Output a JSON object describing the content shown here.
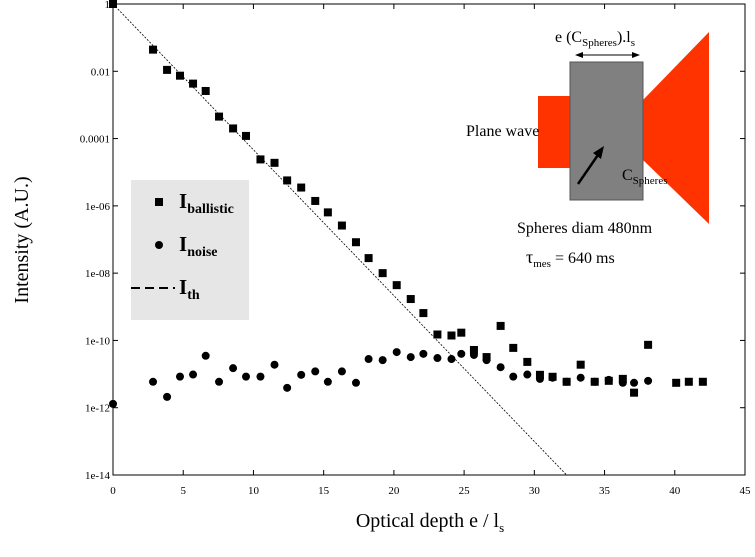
{
  "chart_data": {
    "type": "scatter",
    "log_y": true,
    "y_label": "Intensity (A.U.)",
    "x_label": "Optical depth e / l",
    "x_label_subscript": "s",
    "xlim": [
      0,
      45
    ],
    "xticks": [
      0,
      5,
      10,
      15,
      20,
      25,
      30,
      35,
      40,
      45
    ],
    "ylim": [
      1e-14,
      1
    ],
    "yticks": [
      1,
      {
        "value": 0.01,
        "label": "0.01"
      },
      {
        "value": 0.0001,
        "label": "0.0001"
      },
      {
        "value": 1e-06,
        "label": "1e-06"
      },
      {
        "value": 1e-08,
        "label": "1e-08"
      },
      {
        "value": 1e-10,
        "label": "1e-10"
      },
      {
        "value": 1e-12,
        "label": "1e-12"
      },
      {
        "value": 1e-14,
        "label": "1e-14"
      }
    ],
    "series": [
      {
        "name": "I",
        "name_subscript": "ballistic",
        "marker": "square",
        "color": "#000000",
        "x": [
          0,
          2.85,
          3.85,
          4.77,
          5.7,
          6.6,
          7.55,
          8.55,
          9.47,
          10.5,
          11.5,
          12.4,
          13.4,
          14.4,
          15.3,
          16.3,
          17.3,
          18.2,
          19.2,
          20.2,
          21.2,
          22.1,
          23.1,
          24.1,
          24.8,
          25.7,
          26.6,
          27.6,
          28.5,
          29.5,
          30.4,
          31.3,
          32.3,
          33.3,
          34.3,
          35.3,
          36.3,
          37.1,
          38.1,
          40.1,
          41.0,
          42.0
        ],
        "values": [
          1,
          0.044,
          0.011,
          0.0074,
          0.0043,
          0.0026,
          0.00045,
          0.0002,
          0.00012,
          2.4e-05,
          1.9e-05,
          5.7e-06,
          3.5e-06,
          1.4e-06,
          6.4e-07,
          2.6e-07,
          8.3e-08,
          2.8e-08,
          1e-08,
          4.4e-09,
          1.7e-09,
          6.5e-10,
          1.5e-10,
          1.4e-10,
          1.7e-10,
          5.2e-11,
          3.2e-11,
          2.7e-10,
          6e-11,
          2.3e-11,
          9.5e-12,
          8.3e-12,
          5.9e-12,
          1.9e-11,
          5.9e-12,
          6.3e-12,
          7.2e-12,
          2.8e-12,
          7.4e-11,
          5.5e-12,
          5.9e-12,
          5.9e-12
        ]
      },
      {
        "name": "I",
        "name_subscript": "noise",
        "marker": "circle",
        "color": "#000000",
        "x": [
          0,
          2.85,
          3.85,
          4.77,
          5.7,
          6.6,
          7.55,
          8.55,
          9.47,
          10.5,
          11.5,
          12.4,
          13.4,
          14.4,
          15.3,
          16.3,
          17.3,
          18.2,
          19.2,
          20.2,
          21.2,
          22.1,
          23.1,
          24.1,
          24.8,
          25.7,
          26.6,
          27.6,
          28.5,
          29.5,
          30.4,
          31.3,
          32.3,
          33.3,
          34.3,
          35.3,
          36.3,
          37.1,
          38.1
        ],
        "values": [
          1.3e-12,
          5.9e-12,
          2.1e-12,
          8.4e-12,
          9.7e-12,
          3.5e-11,
          5.9e-12,
          1.5e-11,
          8.4e-12,
          8.4e-12,
          1.9e-11,
          3.9e-12,
          9.5e-12,
          1.2e-11,
          5.9e-12,
          1.2e-11,
          5.5e-12,
          2.8e-11,
          2.6e-11,
          4.5e-11,
          3.2e-11,
          4e-11,
          3e-11,
          2.8e-11,
          4e-11,
          3.7e-11,
          2.6e-11,
          1.6e-11,
          8.4e-12,
          9.7e-12,
          7.2e-12,
          7.8e-12,
          5.9e-12,
          7.8e-12,
          5.9e-12,
          6.7e-12,
          5.5e-12,
          5.5e-12,
          6.3e-12
        ]
      },
      {
        "name": "I",
        "name_subscript": "th",
        "marker": "dashed-line",
        "color": "#000000",
        "x": [
          0,
          32.3
        ],
        "values": [
          1,
          1e-14
        ]
      }
    ],
    "inset": {
      "width_label": "e (C",
      "width_label_sub": "Spheres",
      "width_label_mid": ").l",
      "width_label_sub2": "s",
      "source_label": "Plane wave",
      "concentration_label": "C",
      "concentration_sub": "Spheres",
      "note1": "Spheres diam 480nm",
      "note2_symbol": "τ",
      "note2_sub": "mes",
      "note2_rest": " = 640 ms"
    }
  }
}
